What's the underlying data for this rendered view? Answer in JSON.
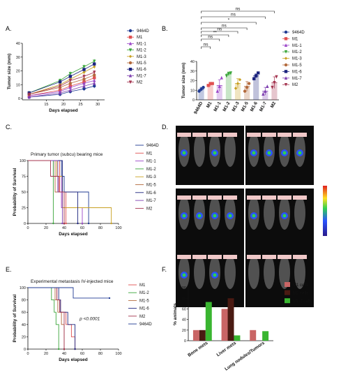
{
  "colors": {
    "9464D": "#1f3a93",
    "M1": "#e05050",
    "M1-1": "#9b46c8",
    "M1-2": "#3aa63a",
    "M1-3": "#c8a022",
    "M1-5": "#b36a3c",
    "M1-6": "#1b237e",
    "M1-7": "#7e3fb0",
    "M2": "#a4344f",
    "bar_M1": "#c96565",
    "bar_M2": "#4a1a12",
    "bar_M12": "#39b530"
  },
  "panels": {
    "A": "A.",
    "B": "B.",
    "C": "C.",
    "D": "D.",
    "E": "E.",
    "F": "F."
  },
  "chart_data": [
    {
      "id": "A",
      "type": "line",
      "xlabel": "Days elapsed",
      "ylabel": "Tumor size (mm)",
      "xlim": [
        8,
        32
      ],
      "ylim": [
        -1,
        40
      ],
      "xticks": [
        15,
        20,
        25,
        30
      ],
      "yticks": [
        0,
        10,
        20,
        30,
        40
      ],
      "x": [
        10,
        19,
        22,
        26,
        29
      ],
      "series": [
        {
          "name": "9464D",
          "values": [
            1,
            3,
            5,
            7,
            9
          ]
        },
        {
          "name": "M1",
          "values": [
            2,
            6,
            9,
            12,
            15
          ]
        },
        {
          "name": "M1-1",
          "values": [
            2,
            5,
            8,
            11,
            13
          ]
        },
        {
          "name": "M1-2",
          "values": [
            4,
            13,
            18,
            23,
            27
          ]
        },
        {
          "name": "M1-3",
          "values": [
            3,
            10,
            14,
            19,
            23
          ]
        },
        {
          "name": "M1-5",
          "values": [
            3,
            8,
            11,
            14,
            17
          ]
        },
        {
          "name": "M1-6",
          "values": [
            4,
            12,
            16,
            21,
            25
          ]
        },
        {
          "name": "M1-7",
          "values": [
            1,
            4,
            6,
            9,
            11
          ]
        },
        {
          "name": "M2",
          "values": [
            3,
            9,
            13,
            16,
            19
          ]
        }
      ]
    },
    {
      "id": "B",
      "type": "bar",
      "xlabel": "",
      "ylabel": "Tumor size (mm)",
      "ylim": [
        0,
        40
      ],
      "yticks": [
        0,
        10,
        20,
        30,
        40
      ],
      "categories": [
        "9464D",
        "M1",
        "M1-1",
        "M1-2",
        "M1-3",
        "M1-5",
        "M1-6",
        "M1-7",
        "M2"
      ],
      "values": [
        11,
        16,
        15,
        27,
        17,
        14,
        25,
        9,
        18
      ],
      "errors": [
        2,
        2,
        6,
        2,
        5,
        5,
        2,
        4,
        6
      ],
      "points": [
        [
          9,
          11,
          13
        ],
        [
          15,
          17,
          17
        ],
        [
          9,
          14,
          23
        ],
        [
          25,
          27,
          28
        ],
        [
          12,
          17,
          21
        ],
        [
          9,
          13,
          17
        ],
        [
          22,
          25,
          28
        ],
        [
          6,
          9,
          14
        ],
        [
          13,
          18,
          24
        ]
      ],
      "significance": [
        {
          "label": "ns",
          "from": 0,
          "to": 1
        },
        {
          "label": "ns",
          "from": 0,
          "to": 2
        },
        {
          "label": "**",
          "from": 0,
          "to": 3
        },
        {
          "label": "ns",
          "from": 0,
          "to": 4
        },
        {
          "label": "ns",
          "from": 0,
          "to": 5
        },
        {
          "label": "*",
          "from": 0,
          "to": 6
        },
        {
          "label": "ns",
          "from": 0,
          "to": 7
        },
        {
          "label": "ns",
          "from": 0,
          "to": 8
        }
      ]
    },
    {
      "id": "C",
      "type": "line",
      "title": "Primary tumor (subcu) bearing mice",
      "xlabel": "Days elapsed",
      "ylabel": "Probability of Survival",
      "xlim": [
        0,
        100
      ],
      "ylim": [
        0,
        100
      ],
      "xticks": [
        0,
        20,
        40,
        60,
        80,
        100
      ],
      "yticks": [
        0,
        25,
        50,
        75,
        100
      ],
      "series": [
        {
          "name": "9464D",
          "steps": [
            [
              0,
              100
            ],
            [
              37,
              75
            ],
            [
              40,
              50
            ],
            [
              67,
              0
            ]
          ]
        },
        {
          "name": "M1",
          "steps": [
            [
              0,
              100
            ],
            [
              35,
              50
            ],
            [
              42,
              0
            ]
          ]
        },
        {
          "name": "M1-1",
          "steps": [
            [
              0,
              100
            ],
            [
              28,
              75
            ],
            [
              37,
              25
            ],
            [
              60,
              0
            ]
          ]
        },
        {
          "name": "M1-2",
          "steps": [
            [
              0,
              100
            ],
            [
              28,
              0
            ]
          ]
        },
        {
          "name": "M1-3",
          "steps": [
            [
              0,
              100
            ],
            [
              32,
              75
            ],
            [
              38,
              25
            ],
            [
              92,
              0
            ]
          ]
        },
        {
          "name": "M1-5",
          "steps": [
            [
              0,
              100
            ],
            [
              30,
              50
            ],
            [
              40,
              0
            ]
          ]
        },
        {
          "name": "M1-6",
          "steps": [
            [
              0,
              100
            ],
            [
              38,
              50
            ],
            [
              55,
              0
            ]
          ]
        },
        {
          "name": "M1-7",
          "steps": [
            [
              0,
              100
            ],
            [
              33,
              50
            ],
            [
              38,
              0
            ]
          ]
        },
        {
          "name": "M2",
          "steps": [
            [
              0,
              100
            ],
            [
              25,
              75
            ],
            [
              34,
              50
            ],
            [
              40,
              0
            ]
          ]
        }
      ]
    },
    {
      "id": "E",
      "type": "line",
      "title": "Experimental metastasis IV-injected mice",
      "xlabel": "Days elapsed",
      "ylabel": "Probability of Survival",
      "xlim": [
        0,
        100
      ],
      "ylim": [
        0,
        100
      ],
      "xticks": [
        0,
        20,
        40,
        60,
        80,
        100
      ],
      "yticks": [
        0,
        20,
        40,
        60,
        80,
        100
      ],
      "annotation": "p <0.0001",
      "series": [
        {
          "name": "M1",
          "steps": [
            [
              0,
              100
            ],
            [
              32,
              80
            ],
            [
              36,
              60
            ],
            [
              42,
              40
            ],
            [
              48,
              20
            ],
            [
              52,
              0
            ]
          ]
        },
        {
          "name": "M1-2",
          "steps": [
            [
              0,
              100
            ],
            [
              26,
              80
            ],
            [
              29,
              60
            ],
            [
              31,
              40
            ],
            [
              34,
              0
            ]
          ]
        },
        {
          "name": "M1-5",
          "steps": [
            [
              0,
              100
            ],
            [
              30,
              80
            ],
            [
              33,
              60
            ],
            [
              37,
              40
            ],
            [
              40,
              0
            ]
          ]
        },
        {
          "name": "M1-6",
          "steps": [
            [
              0,
              100
            ],
            [
              34,
              80
            ],
            [
              36,
              60
            ],
            [
              44,
              40
            ],
            [
              52,
              0
            ]
          ]
        },
        {
          "name": "M2",
          "steps": [
            [
              0,
              100
            ],
            [
              32,
              80
            ],
            [
              35,
              60
            ],
            [
              40,
              0
            ]
          ]
        },
        {
          "name": "9464D",
          "steps": [
            [
              0,
              100
            ],
            [
              50,
              83
            ],
            [
              90,
              83
            ]
          ]
        }
      ]
    },
    {
      "id": "F",
      "type": "bar",
      "xlabel": "",
      "ylabel": "% animals",
      "ylim": [
        0,
        100
      ],
      "yticks": [
        0,
        20,
        40,
        60,
        80,
        100
      ],
      "categories": [
        "Bone mets",
        "Liver mets",
        "Lung nodules/Tumors"
      ],
      "series": [
        {
          "name": "M1 cells",
          "values": [
            20,
            60,
            20
          ]
        },
        {
          "name": "M2 cells",
          "values": [
            20,
            80,
            0
          ]
        },
        {
          "name": "M1-2 cells",
          "values": [
            73,
            10,
            18
          ]
        }
      ]
    }
  ],
  "imaging": {
    "tiles": [
      {
        "label": "M1"
      },
      {
        "label": "M1-2"
      },
      {
        "label": "M1-5"
      },
      {
        "label": "M1-6"
      },
      {
        "label": "M2"
      },
      {
        "label": "9464D"
      }
    ]
  }
}
